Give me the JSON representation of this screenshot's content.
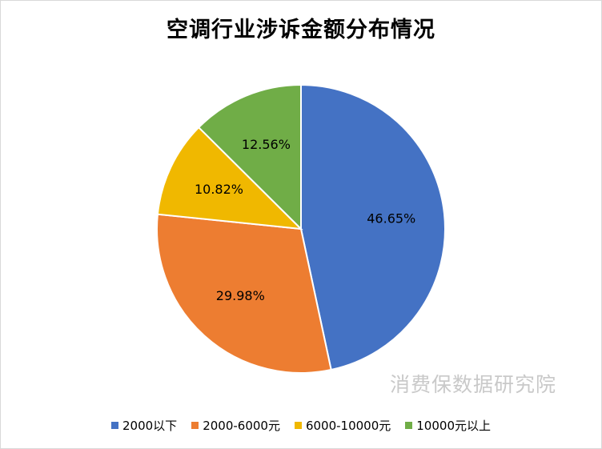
{
  "chart_data": {
    "type": "pie",
    "title": "空调行业涉诉金额分布情况",
    "categories": [
      "2000以下",
      "2000-6000元",
      "6000-10000元",
      "10000元以上"
    ],
    "values": [
      46.65,
      29.98,
      10.82,
      12.56
    ],
    "data_labels": [
      "46.65%",
      "29.98%",
      "10.82%",
      "12.56%"
    ],
    "colors": [
      "#4472c4",
      "#ed7d31",
      "#f0b800",
      "#70ad47"
    ],
    "legend_position": "bottom",
    "start_angle": "top",
    "direction": "clockwise"
  },
  "watermark": "消费保数据研究院"
}
